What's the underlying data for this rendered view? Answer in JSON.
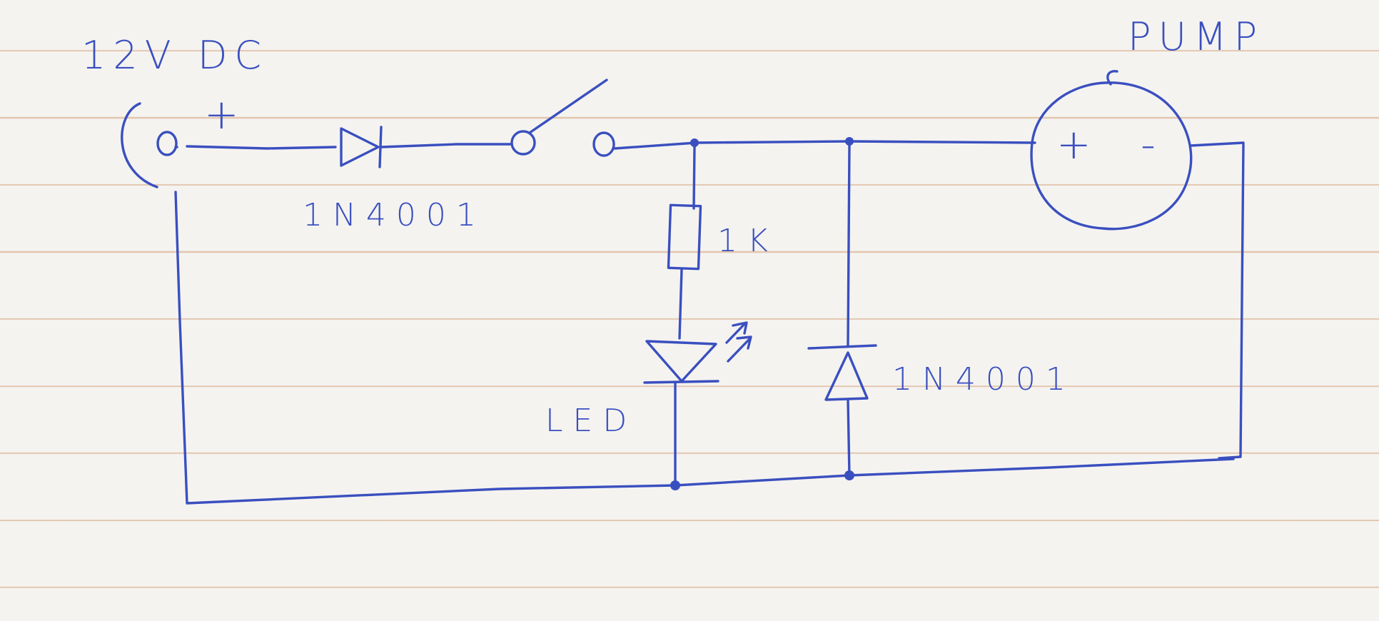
{
  "labels": {
    "supply": "12V DC",
    "supply_plus": "+",
    "pump": "PUMP",
    "pump_plus": "+",
    "pump_minus": "-",
    "diode_series": "1N4001",
    "resistor": "1K",
    "led": "LED",
    "diode_flyback": "1N4001"
  },
  "colors": {
    "ink": "#3a4fbf",
    "paper": "#f4f3f0",
    "rule_lines": "#d6a078"
  }
}
